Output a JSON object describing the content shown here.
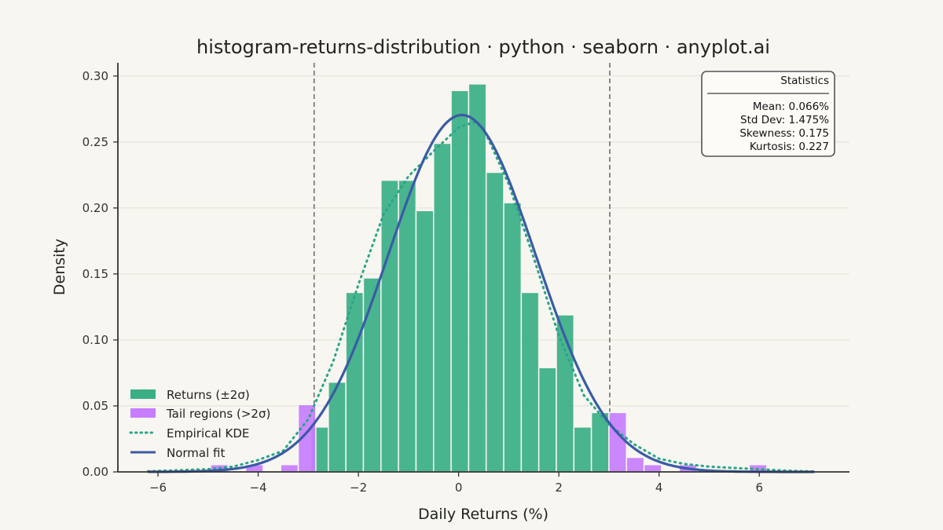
{
  "chart_data": {
    "type": "bar",
    "title": "histogram-returns-distribution · python · seaborn · anyplot.ai",
    "xlabel": "Daily Returns (%)",
    "ylabel": "Density",
    "xlim": [
      -6.8,
      7.8
    ],
    "ylim": [
      0,
      0.31
    ],
    "xticks": [
      -6,
      -4,
      -2,
      0,
      2,
      4,
      6
    ],
    "xtick_labels": [
      "−6",
      "−4",
      "−2",
      "0",
      "2",
      "4",
      "6"
    ],
    "yticks": [
      0,
      0.05,
      0.1,
      0.15,
      0.2,
      0.25,
      0.3
    ],
    "ytick_labels": [
      "0.00",
      "0.05",
      "0.10",
      "0.15",
      "0.20",
      "0.25",
      "0.30"
    ],
    "grid": "horizontal",
    "bin_width": 0.35,
    "sigma_lines": [
      -2.884,
      3.016
    ],
    "series": [
      {
        "name": "Returns (±2σ)",
        "kind": "bar",
        "color": "#3aaf85",
        "bins": [
          [
            -2.95,
            0.034
          ],
          [
            -2.6,
            0.068
          ],
          [
            -2.25,
            0.136
          ],
          [
            -1.9,
            0.147
          ],
          [
            -1.55,
            0.221
          ],
          [
            -1.2,
            0.221
          ],
          [
            -0.85,
            0.198
          ],
          [
            -0.5,
            0.249
          ],
          [
            -0.15,
            0.289
          ],
          [
            0.2,
            0.294
          ],
          [
            0.55,
            0.227
          ],
          [
            0.9,
            0.204
          ],
          [
            1.25,
            0.136
          ],
          [
            1.6,
            0.079
          ],
          [
            1.95,
            0.119
          ],
          [
            2.3,
            0.034
          ],
          [
            2.65,
            0.045
          ]
        ]
      },
      {
        "name": "Tail regions (>2σ)",
        "kind": "bar",
        "color": "#c77dff",
        "bins": [
          [
            -4.95,
            0.0055
          ],
          [
            -4.25,
            0.0055
          ],
          [
            -3.55,
            0.0055
          ],
          [
            -3.2,
            0.051
          ],
          [
            3.0,
            0.045
          ],
          [
            3.35,
            0.011
          ],
          [
            3.7,
            0.0055
          ],
          [
            4.4,
            0.0055
          ],
          [
            5.8,
            0.0055
          ]
        ]
      },
      {
        "name": "Empirical KDE",
        "kind": "line",
        "style": "dotted",
        "color": "#2aa58a",
        "x": [
          -6.2,
          -5,
          -4.5,
          -4,
          -3.5,
          -3,
          -2.5,
          -2,
          -1.5,
          -1,
          -0.5,
          0,
          0.3,
          0.5,
          1,
          1.5,
          2,
          2.5,
          3,
          3.5,
          4,
          4.5,
          5,
          5.5,
          6,
          6.5,
          7.1
        ],
        "y": [
          0.0005,
          0.002,
          0.004,
          0.009,
          0.016,
          0.04,
          0.084,
          0.142,
          0.195,
          0.224,
          0.243,
          0.261,
          0.265,
          0.26,
          0.218,
          0.162,
          0.103,
          0.058,
          0.036,
          0.021,
          0.01,
          0.006,
          0.004,
          0.003,
          0.002,
          0.001,
          0.0003
        ]
      },
      {
        "name": "Normal fit",
        "kind": "line",
        "style": "solid",
        "color": "#3b5ba5",
        "mean": 0.066,
        "std": 1.475,
        "x_range": [
          -6.2,
          7.1
        ]
      }
    ],
    "legend": {
      "position": "lower-left",
      "entries": [
        "Returns (±2σ)",
        "Tail regions (>2σ)",
        "Empirical KDE",
        "Normal fit"
      ]
    },
    "stats_box": {
      "position": "top-right",
      "title": "Statistics",
      "lines": [
        "Mean: 0.066%",
        "Std Dev: 1.475%",
        "Skewness: 0.175",
        "Kurtosis: 0.227"
      ]
    }
  }
}
